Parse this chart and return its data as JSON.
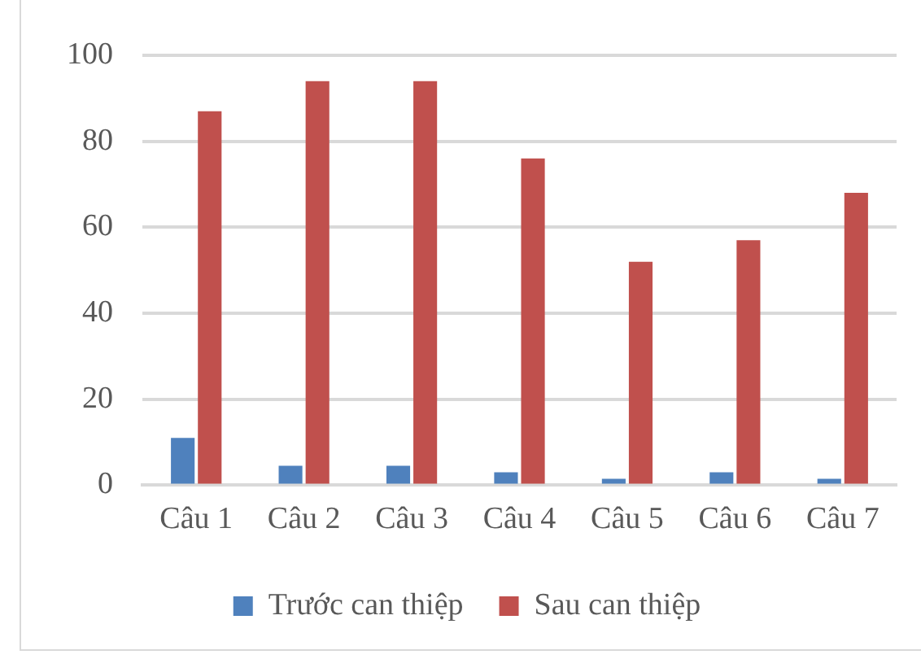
{
  "chart_data": {
    "type": "bar",
    "categories": [
      "Câu 1",
      "Câu 2",
      "Câu 3",
      "Câu 4",
      "Câu 5",
      "Câu 6",
      "Câu 7"
    ],
    "series": [
      {
        "name": "Trước can thiệp",
        "color": "#4f81bd",
        "values": [
          11,
          4.5,
          4.5,
          3,
          1.5,
          3,
          1.5
        ]
      },
      {
        "name": "Sau can thiệp",
        "color": "#c0504d",
        "values": [
          87,
          94,
          94,
          76,
          52,
          57,
          68
        ]
      }
    ],
    "ylim": [
      0,
      100
    ],
    "yticks": [
      0,
      20,
      40,
      60,
      80,
      100
    ],
    "grid": "y",
    "legend": "bottom"
  }
}
